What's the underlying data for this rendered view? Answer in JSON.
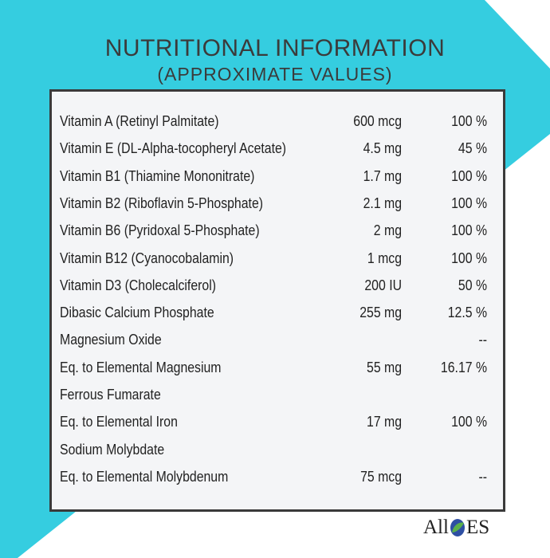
{
  "title": "NUTRITIONAL INFORMATION",
  "subtitle": "(APPROXIMATE VALUES)",
  "table": {
    "rows": [
      {
        "name": "Vitamin A (Retinyl Palmitate)",
        "amount": "600 mcg",
        "percent": "100 %"
      },
      {
        "name": "Vitamin E (DL-Alpha-tocopheryl Acetate)",
        "amount": "4.5 mg",
        "percent": "45 %"
      },
      {
        "name": "Vitamin B1 (Thiamine Mononitrate)",
        "amount": "1.7 mg",
        "percent": "100 %"
      },
      {
        "name": "Vitamin B2 (Riboflavin 5-Phosphate)",
        "amount": "2.1 mg",
        "percent": "100 %"
      },
      {
        "name": "Vitamin B6 (Pyridoxal 5-Phosphate)",
        "amount": "2 mg",
        "percent": "100 %"
      },
      {
        "name": "Vitamin B12 (Cyanocobalamin)",
        "amount": "1 mcg",
        "percent": "100 %"
      },
      {
        "name": "Vitamin D3 (Cholecalciferol)",
        "amount": "200 IU",
        "percent": "50 %"
      },
      {
        "name": "Dibasic Calcium Phosphate",
        "amount": "255 mg",
        "percent": "12.5 %"
      },
      {
        "name": "Magnesium Oxide",
        "percent": "--"
      },
      {
        "name": "Eq. to Elemental Magnesium",
        "amount": "55 mg",
        "percent": "16.17 %"
      },
      {
        "name": "Ferrous Fumarate"
      },
      {
        "name": "Eq. to Elemental Iron",
        "amount": "17 mg",
        "percent": "100 %"
      },
      {
        "name": "Sodium Molybdate"
      },
      {
        "name": "Eq. to Elemental Molybdenum",
        "amount": "75 mcg",
        "percent": "--"
      }
    ]
  },
  "brand": {
    "left": "All",
    "right": "ES"
  }
}
